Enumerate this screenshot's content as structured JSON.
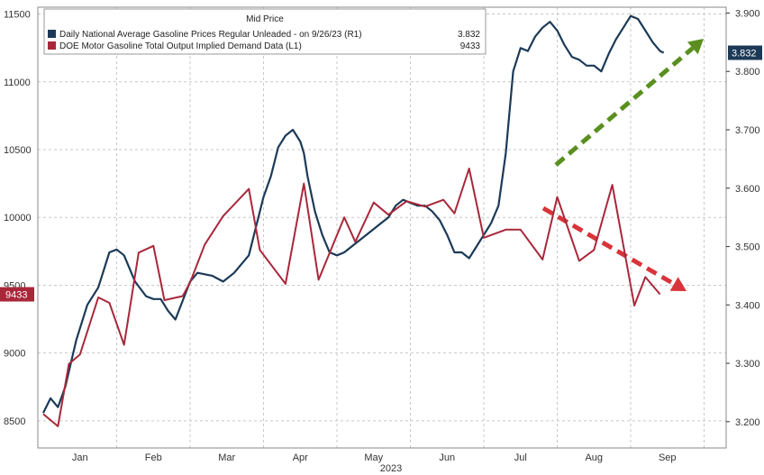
{
  "chart_data": {
    "type": "line",
    "title": "Mid Price",
    "year_label": "2023",
    "x_categories": [
      "Jan",
      "Feb",
      "Mar",
      "Apr",
      "May",
      "Jun",
      "Jul",
      "Aug",
      "Sep"
    ],
    "left_axis": {
      "ylim": [
        8300,
        11550
      ],
      "ticks": [
        8500,
        9000,
        9500,
        10000,
        10500,
        11000,
        11500
      ]
    },
    "right_axis": {
      "ylim": [
        3.155,
        3.91
      ],
      "ticks": [
        3.2,
        3.3,
        3.4,
        3.5,
        3.6,
        3.7,
        3.8,
        3.9
      ]
    },
    "series": [
      {
        "name": "Daily National Average Gasoline Prices Regular Unleaded -  on 9/26/23  (R1)",
        "legend_value": "3.832",
        "axis": "right",
        "color": "#1c3a57",
        "last_label": "3.832",
        "x": [
          0.0,
          0.1,
          0.2,
          0.3,
          0.45,
          0.6,
          0.75,
          0.9,
          1.0,
          1.1,
          1.25,
          1.4,
          1.5,
          1.6,
          1.7,
          1.8,
          2.0,
          2.1,
          2.3,
          2.45,
          2.6,
          2.8,
          3.0,
          3.1,
          3.2,
          3.3,
          3.4,
          3.5,
          3.55,
          3.6,
          3.7,
          3.8,
          3.9,
          4.0,
          4.1,
          4.2,
          4.3,
          4.4,
          4.5,
          4.6,
          4.7,
          4.8,
          4.9,
          5.0,
          5.1,
          5.2,
          5.3,
          5.4,
          5.5,
          5.6,
          5.7,
          5.8,
          5.9,
          6.0,
          6.1,
          6.2,
          6.3,
          6.4,
          6.5,
          6.6,
          6.7,
          6.8,
          6.9,
          7.0,
          7.1,
          7.2,
          7.3,
          7.4,
          7.5,
          7.6,
          7.7,
          7.8,
          7.9,
          8.0,
          8.1,
          8.2,
          8.3,
          8.4,
          8.45
        ],
        "y": [
          3.215,
          3.24,
          3.225,
          3.26,
          3.34,
          3.4,
          3.43,
          3.49,
          3.495,
          3.485,
          3.44,
          3.415,
          3.41,
          3.41,
          3.39,
          3.375,
          3.44,
          3.455,
          3.45,
          3.44,
          3.455,
          3.485,
          3.585,
          3.62,
          3.67,
          3.69,
          3.7,
          3.68,
          3.66,
          3.62,
          3.56,
          3.52,
          3.49,
          3.485,
          3.49,
          3.5,
          3.51,
          3.52,
          3.53,
          3.54,
          3.55,
          3.57,
          3.58,
          3.575,
          3.57,
          3.57,
          3.56,
          3.545,
          3.52,
          3.49,
          3.49,
          3.48,
          3.5,
          3.52,
          3.54,
          3.57,
          3.66,
          3.8,
          3.84,
          3.835,
          3.86,
          3.875,
          3.885,
          3.87,
          3.845,
          3.825,
          3.82,
          3.81,
          3.81,
          3.8,
          3.83,
          3.855,
          3.875,
          3.895,
          3.89,
          3.87,
          3.85,
          3.835,
          3.832
        ]
      },
      {
        "name": "DOE Motor Gasoline Total Output Implied Demand Data  (L1)",
        "legend_value": "9433",
        "axis": "left",
        "color": "#a8283a",
        "last_label": "9433",
        "x": [
          0.0,
          0.2,
          0.35,
          0.5,
          0.75,
          0.9,
          1.1,
          1.3,
          1.5,
          1.65,
          1.9,
          2.0,
          2.2,
          2.45,
          2.8,
          2.95,
          3.3,
          3.55,
          3.75,
          4.1,
          4.25,
          4.5,
          4.7,
          4.95,
          5.2,
          5.45,
          5.6,
          5.8,
          6.0,
          6.3,
          6.5,
          6.8,
          7.0,
          7.3,
          7.5,
          7.75,
          8.05,
          8.2,
          8.4
        ],
        "y": [
          8550,
          8460,
          8920,
          8990,
          9410,
          9370,
          9060,
          9740,
          9790,
          9390,
          9420,
          9520,
          9800,
          10010,
          10210,
          9760,
          9510,
          10250,
          9540,
          10000,
          9820,
          10110,
          10020,
          10120,
          10080,
          10130,
          10030,
          10360,
          9850,
          9910,
          9910,
          9690,
          10150,
          9680,
          9760,
          10240,
          9350,
          9560,
          9433
        ]
      }
    ]
  }
}
